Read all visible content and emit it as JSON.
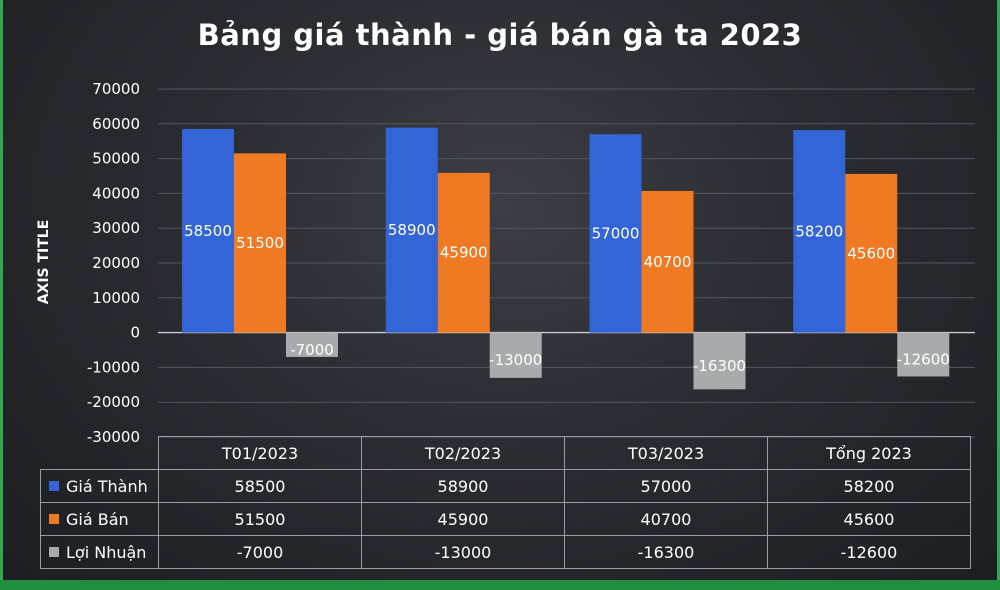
{
  "chart_data": {
    "type": "bar",
    "title": "Bảng giá thành - giá bán gà ta 2023",
    "ylabel": "AXIS TITLE",
    "xlabel": "",
    "ylim": [
      -30000,
      70000
    ],
    "yticks": [
      "70000",
      "60000",
      "50000",
      "40000",
      "30000",
      "20000",
      "10000",
      "0",
      "-10000",
      "-20000",
      "-30000"
    ],
    "categories": [
      "T01/2023",
      "T02/2023",
      "T03/2023",
      "Tổng 2023"
    ],
    "series": [
      {
        "name": "Giá Thành",
        "color": "#3465d6",
        "values": [
          58500,
          58900,
          57000,
          58200
        ]
      },
      {
        "name": "Giá Bán",
        "color": "#f07a24",
        "values": [
          51500,
          45900,
          40700,
          45600
        ]
      },
      {
        "name": "Lợi Nhuận",
        "color": "#a9aaac",
        "values": [
          -7000,
          -13000,
          -16300,
          -12600
        ]
      }
    ],
    "grid": true,
    "legend": "data-table"
  }
}
